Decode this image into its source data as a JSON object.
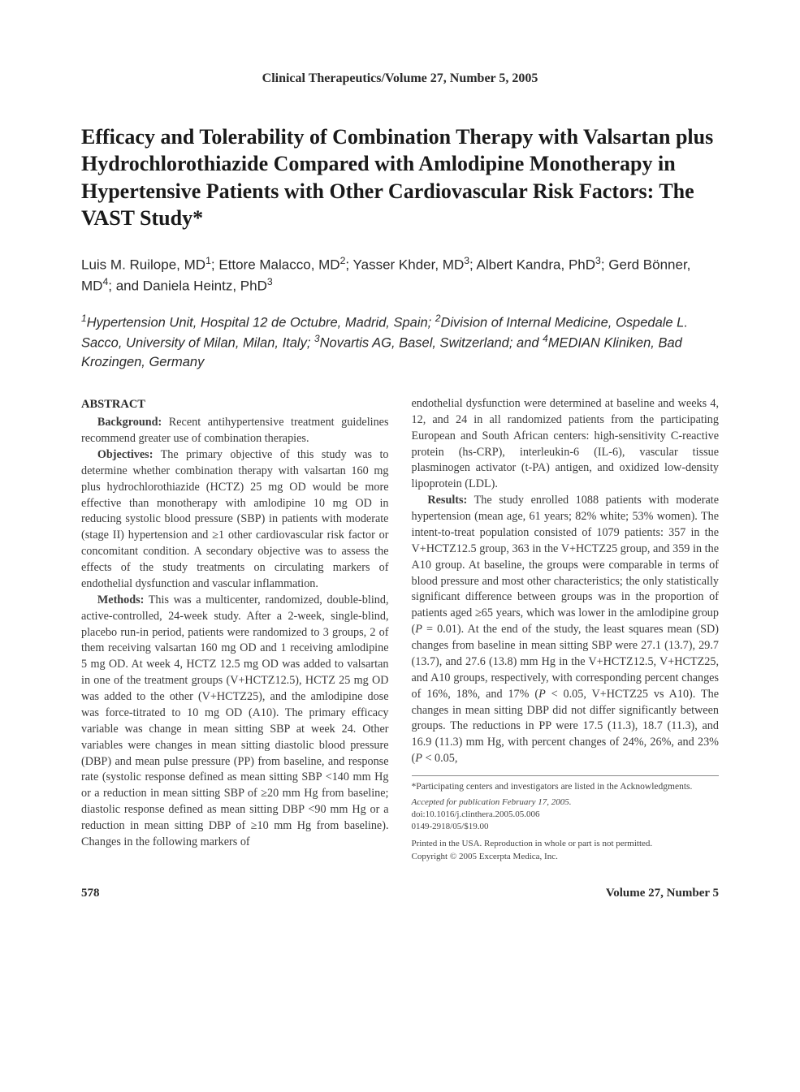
{
  "journal_header": "Clinical Therapeutics/Volume 27, Number 5, 2005",
  "title": "Efficacy and Tolerability of Combination Therapy with Valsartan plus Hydrochlorothiazide Compared with Amlodipine Monotherapy in Hypertensive Patients with Other Cardiovascular Risk Factors: The VAST Study*",
  "authors_html": "Luis M. Ruilope, MD<sup>1</sup>; Ettore Malacco, MD<sup>2</sup>; Yasser Khder, MD<sup>3</sup>; Albert Kandra, PhD<sup>3</sup>; Gerd Bönner, MD<sup>4</sup>; and Daniela Heintz, PhD<sup>3</sup>",
  "affiliations_html": "<sup>1</sup>Hypertension Unit, Hospital 12 de Octubre, Madrid, Spain; <sup>2</sup>Division of Internal Medicine, Ospedale L. Sacco, University of Milan, Milan, Italy; <sup>3</sup>Novartis AG, Basel, Switzerland; and <sup>4</sup>MEDIAN Kliniken, Bad Krozingen, Germany",
  "abstract_label": "ABSTRACT",
  "col1": {
    "p1_label": "Background:",
    "p1": " Recent antihypertensive treatment guidelines recommend greater use of combination therapies.",
    "p2_label": "Objectives:",
    "p2": " The primary objective of this study was to determine whether combination therapy with valsartan 160 mg plus hydrochlorothiazide (HCTZ) 25 mg OD would be more effective than monotherapy with amlodipine 10 mg OD in reducing systolic blood pressure (SBP) in patients with moderate (stage II) hypertension and ≥1 other cardiovascular risk factor or concomitant condition. A secondary objective was to assess the effects of the study treatments on circulating markers of endothelial dysfunction and vascular inflammation.",
    "p3_label": "Methods:",
    "p3": " This was a multicenter, randomized, double-blind, active-controlled, 24-week study. After a 2-week, single-blind, placebo run-in period, patients were randomized to 3 groups, 2 of them receiving valsartan 160 mg OD and 1 receiving amlodipine 5 mg OD. At week 4, HCTZ 12.5 mg OD was added to valsartan in one of the treatment groups (V+HCTZ12.5), HCTZ 25 mg OD was added to the other (V+HCTZ25), and the amlodipine dose was force-titrated to 10 mg OD (A10). The primary efficacy variable was change in mean sitting SBP at week 24. Other variables were changes in mean sitting diastolic blood pressure (DBP) and mean pulse pressure (PP) from baseline, and response rate (systolic response defined as mean sitting SBP <140 mm Hg or a reduction in mean sitting SBP of ≥20 mm Hg from baseline; diastolic response defined as mean sitting DBP <90 mm Hg or a reduction in mean sitting DBP of ≥10 mm Hg from baseline). Changes in the following markers of"
  },
  "col2": {
    "p1": "endothelial dysfunction were determined at baseline and weeks 4, 12, and 24 in all randomized patients from the participating European and South African centers: high-sensitivity C-reactive protein (hs-CRP), interleukin-6 (IL-6), vascular tissue plasminogen activator (t-PA) antigen, and oxidized low-density lipoprotein (LDL).",
    "p2_label": "Results:",
    "p2_html": " The study enrolled 1088 patients with moderate hypertension (mean age, 61 years; 82% white; 53% women). The intent-to-treat population consisted of 1079 patients: 357 in the V+HCTZ12.5 group, 363 in the V+HCTZ25 group, and 359 in the A10 group. At baseline, the groups were comparable in terms of blood pressure and most other characteristics; the only statistically significant difference between groups was in the proportion of patients aged ≥65 years, which was lower in the amlodipine group (<i>P</i> = 0.01). At the end of the study, the least squares mean (SD) changes from baseline in mean sitting SBP were 27.1 (13.7), 29.7 (13.7), and 27.6 (13.8) mm Hg in the V+HCTZ12.5, V+HCTZ25, and A10 groups, respectively, with corresponding percent changes of 16%, 18%, and 17% (<i>P</i> < 0.05, V+HCTZ25 vs A10). The changes in mean sitting DBP did not differ significantly between groups. The reductions in PP were 17.5 (11.3), 18.7 (11.3), and 16.9 (11.3) mm Hg, with percent changes of 24%, 26%, and 23% (<i>P</i> < 0.05,"
  },
  "footnotes": {
    "participating": "*Participating centers and investigators are listed in the Acknowledgments.",
    "accepted": "Accepted for publication February 17, 2005.",
    "doi": "doi:10.1016/j.clinthera.2005.05.006",
    "issn": "0149-2918/05/$19.00",
    "printed": "Printed in the USA. Reproduction in whole or part is not permitted.",
    "copyright": "Copyright © 2005 Excerpta Medica, Inc."
  },
  "footer": {
    "page": "578",
    "issue": "Volume 27, Number 5"
  }
}
